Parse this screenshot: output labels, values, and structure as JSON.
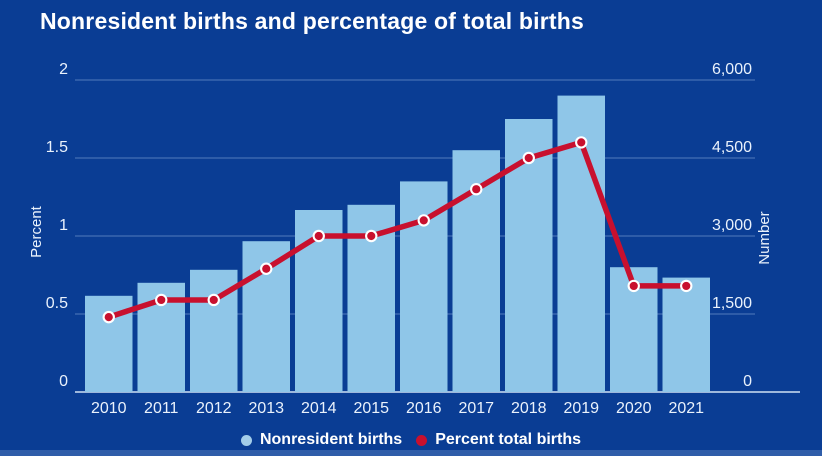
{
  "title": "Nonresident births and percentage of total births",
  "colors": {
    "background": "#0a3d94",
    "bar_fill": "#8fc6e8",
    "line_red": "#c8102e",
    "text": "#ffffff",
    "gridline": "rgba(190,215,245,0.40)",
    "baseline": "#cfe2f4",
    "bottom_strip": "#2f5da9"
  },
  "chart_data": {
    "type": "bar",
    "subtype": "bar-line-combo",
    "title": "Nonresident births and percentage of total births",
    "categories": [
      "2010",
      "2011",
      "2012",
      "2013",
      "2014",
      "2015",
      "2016",
      "2017",
      "2018",
      "2019",
      "2020",
      "2021"
    ],
    "series": [
      {
        "name": "Nonresident births",
        "type": "bar",
        "axis": "right",
        "values": [
          1850,
          2100,
          2350,
          2900,
          3500,
          3600,
          4050,
          4650,
          5250,
          5700,
          2400,
          2200
        ]
      },
      {
        "name": "Percent total births",
        "type": "line",
        "axis": "left",
        "values": [
          0.48,
          0.59,
          0.59,
          0.79,
          1.0,
          1.0,
          1.1,
          1.3,
          1.5,
          1.6,
          0.68,
          0.68
        ]
      }
    ],
    "left_axis": {
      "label": "Percent",
      "min": 0,
      "max": 2,
      "ticks": [
        "0",
        "0.5",
        "1",
        "1.5",
        "2"
      ]
    },
    "right_axis": {
      "label": "Number",
      "min": 0,
      "max": 6000,
      "ticks": [
        "0",
        "1,500",
        "3,000",
        "4,500",
        "6,000"
      ]
    },
    "grid": true,
    "legend_position": "bottom"
  },
  "legend": {
    "bar_label": "Nonresident births",
    "line_label": "Percent total births"
  }
}
